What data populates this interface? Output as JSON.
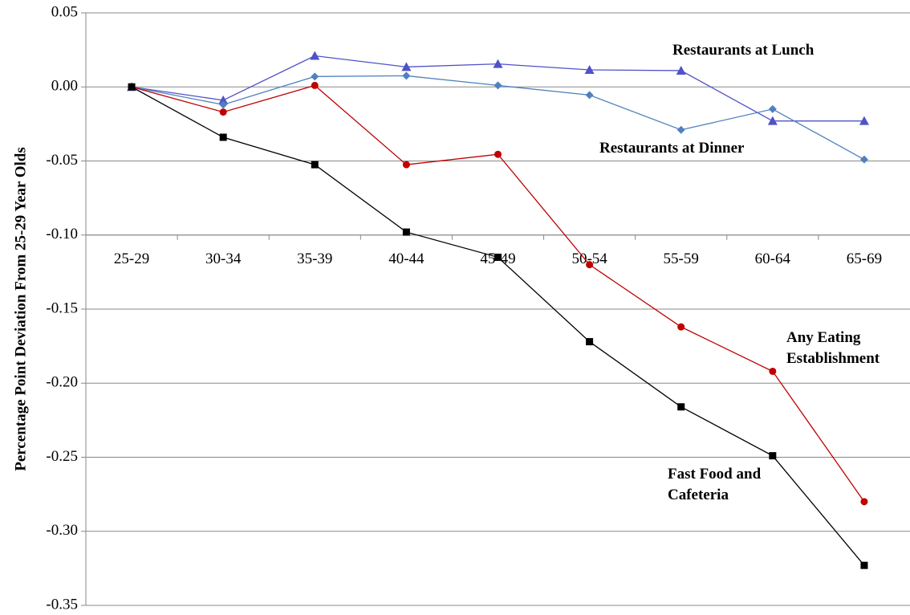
{
  "chart_data": {
    "type": "line",
    "y_label": "Percentage Point Deviation From 25-29 Year Olds",
    "categories": [
      "25-29",
      "30-34",
      "35-39",
      "40-44",
      "45-49",
      "50-54",
      "55-59",
      "60-64",
      "65-69"
    ],
    "series": [
      {
        "name": "Restaurants at Lunch",
        "color": "#4f52c8",
        "marker": "triangle",
        "values": [
          0,
          -0.009,
          0.021,
          0.0135,
          0.0155,
          0.0115,
          0.011,
          -0.023,
          -0.023
        ]
      },
      {
        "name": "Restaurants at Dinner",
        "color": "#4f81bd",
        "marker": "diamond",
        "values": [
          0,
          -0.012,
          0.007,
          0.0075,
          0.001,
          -0.0055,
          -0.029,
          -0.015,
          -0.049
        ]
      },
      {
        "name": "Any Eating Establishment",
        "color": "#c00000",
        "marker": "circle",
        "values": [
          0,
          -0.017,
          0.001,
          -0.0525,
          -0.0455,
          -0.12,
          -0.162,
          -0.192,
          -0.28
        ]
      },
      {
        "name": "Fast Food and Cafeteria",
        "color": "#000000",
        "marker": "square",
        "values": [
          0,
          -0.034,
          -0.0525,
          -0.098,
          -0.115,
          -0.172,
          -0.216,
          -0.249,
          -0.323
        ]
      }
    ],
    "ylim": [
      -0.35,
      0.05
    ],
    "yticks": [
      0.05,
      {
        "value": 0,
        "label": "0.00"
      },
      -0.05,
      {
        "value": -0.1,
        "label": "-0.10"
      },
      -0.15,
      {
        "value": -0.2,
        "label": "-0.20"
      },
      -0.25,
      {
        "value": -0.3,
        "label": "-0.30"
      },
      -0.35
    ],
    "category_axis_at": -0.1,
    "grid": true
  }
}
